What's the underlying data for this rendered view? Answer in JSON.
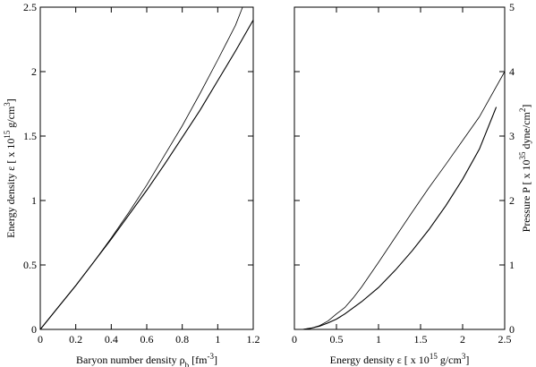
{
  "chart_data": [
    {
      "type": "line",
      "xlabel": "Baryon number density ρ",
      "xlabel_sub": "b",
      "xlabel_unit": "[fm",
      "xlabel_unit_sup": "-3",
      "xlabel_unit_end": "]",
      "ylabel": "Energy density ε [ x 10",
      "ylabel_sup": "15",
      "ylabel_unit": "g/cm",
      "ylabel_unit_sup": "3",
      "ylabel_end": "]",
      "xlim": [
        0,
        1.2
      ],
      "ylim": [
        0,
        2.5
      ],
      "xticks": [
        {
          "value": 0,
          "label": "0"
        },
        {
          "value": 0.2,
          "label": "0.2"
        },
        {
          "value": 0.4,
          "label": "0.4"
        },
        {
          "value": 0.6,
          "label": "0.6"
        },
        {
          "value": 0.8,
          "label": "0.8"
        },
        {
          "value": 1.0,
          "label": "1"
        },
        {
          "value": 1.2,
          "label": "1.2"
        }
      ],
      "yticks": [
        {
          "value": 0,
          "label": "0"
        },
        {
          "value": 0.5,
          "label": "0.5"
        },
        {
          "value": 1.0,
          "label": "1"
        },
        {
          "value": 1.5,
          "label": "1.5"
        },
        {
          "value": 2.0,
          "label": "2"
        },
        {
          "value": 2.5,
          "label": "2.5"
        }
      ],
      "series": [
        {
          "style": "thin",
          "x": [
            0,
            0.1,
            0.2,
            0.3,
            0.4,
            0.5,
            0.6,
            0.7,
            0.8,
            0.9,
            1.0,
            1.1,
            1.14
          ],
          "y": [
            0,
            0.17,
            0.34,
            0.52,
            0.71,
            0.91,
            1.12,
            1.35,
            1.58,
            1.83,
            2.09,
            2.36,
            2.5
          ]
        },
        {
          "style": "thick",
          "x": [
            0,
            0.1,
            0.2,
            0.3,
            0.4,
            0.5,
            0.6,
            0.7,
            0.8,
            0.9,
            1.0,
            1.1,
            1.2
          ],
          "y": [
            0,
            0.17,
            0.34,
            0.52,
            0.7,
            0.89,
            1.08,
            1.28,
            1.49,
            1.7,
            1.93,
            2.16,
            2.4
          ]
        }
      ]
    },
    {
      "type": "line",
      "xlabel": "Energy density ε [ x 10",
      "xlabel_sup": "15",
      "xlabel_unit": "g/cm",
      "xlabel_unit_sup": "3",
      "xlabel_end": "]",
      "ylabel": "Pressure P [ x 10",
      "ylabel_sup": "35",
      "ylabel_unit": "dyne/cm",
      "ylabel_unit_sup": "2",
      "ylabel_end": "]",
      "xlim": [
        0,
        2.5
      ],
      "ylim": [
        0,
        5
      ],
      "xticks": [
        {
          "value": 0,
          "label": "0"
        },
        {
          "value": 0.5,
          "label": "0.5"
        },
        {
          "value": 1.0,
          "label": "1"
        },
        {
          "value": 1.5,
          "label": "1.5"
        },
        {
          "value": 2.0,
          "label": "2"
        },
        {
          "value": 2.5,
          "label": "2.5"
        }
      ],
      "yticks": [
        {
          "value": 0,
          "label": "0"
        },
        {
          "value": 1,
          "label": "1"
        },
        {
          "value": 2,
          "label": "2"
        },
        {
          "value": 3,
          "label": "3"
        },
        {
          "value": 4,
          "label": "4"
        },
        {
          "value": 5,
          "label": "5"
        }
      ],
      "series": [
        {
          "style": "thin",
          "x": [
            0.1,
            0.2,
            0.3,
            0.4,
            0.5,
            0.6,
            0.7,
            0.8,
            1.0,
            1.2,
            1.4,
            1.6,
            1.8,
            2.0,
            2.2,
            2.5
          ],
          "y": [
            0,
            0.02,
            0.06,
            0.13,
            0.24,
            0.34,
            0.49,
            0.66,
            1.04,
            1.43,
            1.82,
            2.2,
            2.56,
            2.93,
            3.3,
            4.0
          ]
        },
        {
          "style": "thick",
          "x": [
            0.1,
            0.2,
            0.3,
            0.4,
            0.5,
            0.6,
            0.8,
            1.0,
            1.2,
            1.4,
            1.6,
            1.8,
            2.0,
            2.2,
            2.4
          ],
          "y": [
            0,
            0.02,
            0.05,
            0.1,
            0.16,
            0.24,
            0.43,
            0.65,
            0.92,
            1.22,
            1.55,
            1.92,
            2.33,
            2.8,
            3.45
          ]
        }
      ]
    }
  ]
}
